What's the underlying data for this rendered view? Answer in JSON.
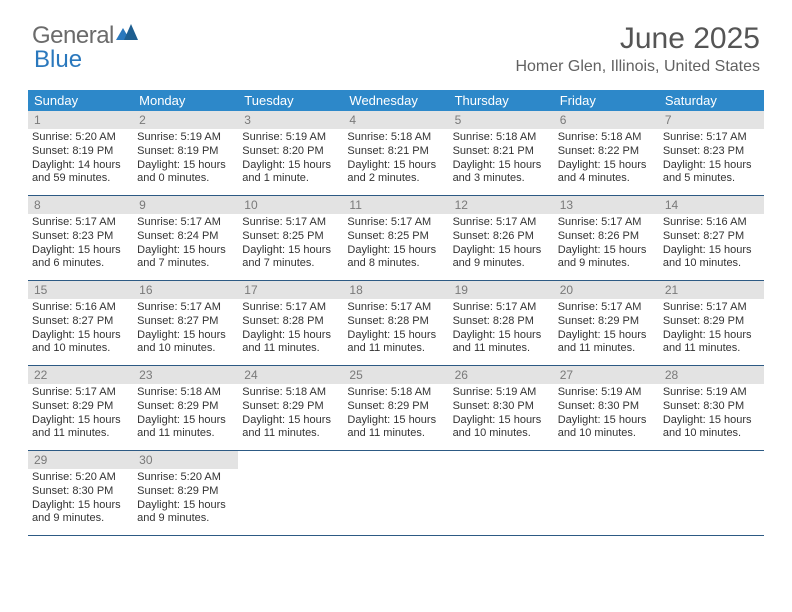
{
  "brand": {
    "part1": "General",
    "part2": "Blue"
  },
  "title": "June 2025",
  "location": "Homer Glen, Illinois, United States",
  "colors": {
    "header_bg": "#2d88c9",
    "header_text": "#ffffff",
    "daynum_bg": "#e3e3e3",
    "daynum_text": "#7a7a7a",
    "body_text": "#333333",
    "rule": "#2d5a84",
    "brand_gray": "#6b6b6b",
    "brand_blue": "#2a78bd"
  },
  "dow": [
    "Sunday",
    "Monday",
    "Tuesday",
    "Wednesday",
    "Thursday",
    "Friday",
    "Saturday"
  ],
  "days": [
    {
      "n": "1",
      "sr": "5:20 AM",
      "ss": "8:19 PM",
      "dl": "14 hours and 59 minutes."
    },
    {
      "n": "2",
      "sr": "5:19 AM",
      "ss": "8:19 PM",
      "dl": "15 hours and 0 minutes."
    },
    {
      "n": "3",
      "sr": "5:19 AM",
      "ss": "8:20 PM",
      "dl": "15 hours and 1 minute."
    },
    {
      "n": "4",
      "sr": "5:18 AM",
      "ss": "8:21 PM",
      "dl": "15 hours and 2 minutes."
    },
    {
      "n": "5",
      "sr": "5:18 AM",
      "ss": "8:21 PM",
      "dl": "15 hours and 3 minutes."
    },
    {
      "n": "6",
      "sr": "5:18 AM",
      "ss": "8:22 PM",
      "dl": "15 hours and 4 minutes."
    },
    {
      "n": "7",
      "sr": "5:17 AM",
      "ss": "8:23 PM",
      "dl": "15 hours and 5 minutes."
    },
    {
      "n": "8",
      "sr": "5:17 AM",
      "ss": "8:23 PM",
      "dl": "15 hours and 6 minutes."
    },
    {
      "n": "9",
      "sr": "5:17 AM",
      "ss": "8:24 PM",
      "dl": "15 hours and 7 minutes."
    },
    {
      "n": "10",
      "sr": "5:17 AM",
      "ss": "8:25 PM",
      "dl": "15 hours and 7 minutes."
    },
    {
      "n": "11",
      "sr": "5:17 AM",
      "ss": "8:25 PM",
      "dl": "15 hours and 8 minutes."
    },
    {
      "n": "12",
      "sr": "5:17 AM",
      "ss": "8:26 PM",
      "dl": "15 hours and 9 minutes."
    },
    {
      "n": "13",
      "sr": "5:17 AM",
      "ss": "8:26 PM",
      "dl": "15 hours and 9 minutes."
    },
    {
      "n": "14",
      "sr": "5:16 AM",
      "ss": "8:27 PM",
      "dl": "15 hours and 10 minutes."
    },
    {
      "n": "15",
      "sr": "5:16 AM",
      "ss": "8:27 PM",
      "dl": "15 hours and 10 minutes."
    },
    {
      "n": "16",
      "sr": "5:17 AM",
      "ss": "8:27 PM",
      "dl": "15 hours and 10 minutes."
    },
    {
      "n": "17",
      "sr": "5:17 AM",
      "ss": "8:28 PM",
      "dl": "15 hours and 11 minutes."
    },
    {
      "n": "18",
      "sr": "5:17 AM",
      "ss": "8:28 PM",
      "dl": "15 hours and 11 minutes."
    },
    {
      "n": "19",
      "sr": "5:17 AM",
      "ss": "8:28 PM",
      "dl": "15 hours and 11 minutes."
    },
    {
      "n": "20",
      "sr": "5:17 AM",
      "ss": "8:29 PM",
      "dl": "15 hours and 11 minutes."
    },
    {
      "n": "21",
      "sr": "5:17 AM",
      "ss": "8:29 PM",
      "dl": "15 hours and 11 minutes."
    },
    {
      "n": "22",
      "sr": "5:17 AM",
      "ss": "8:29 PM",
      "dl": "15 hours and 11 minutes."
    },
    {
      "n": "23",
      "sr": "5:18 AM",
      "ss": "8:29 PM",
      "dl": "15 hours and 11 minutes."
    },
    {
      "n": "24",
      "sr": "5:18 AM",
      "ss": "8:29 PM",
      "dl": "15 hours and 11 minutes."
    },
    {
      "n": "25",
      "sr": "5:18 AM",
      "ss": "8:29 PM",
      "dl": "15 hours and 11 minutes."
    },
    {
      "n": "26",
      "sr": "5:19 AM",
      "ss": "8:30 PM",
      "dl": "15 hours and 10 minutes."
    },
    {
      "n": "27",
      "sr": "5:19 AM",
      "ss": "8:30 PM",
      "dl": "15 hours and 10 minutes."
    },
    {
      "n": "28",
      "sr": "5:19 AM",
      "ss": "8:30 PM",
      "dl": "15 hours and 10 minutes."
    },
    {
      "n": "29",
      "sr": "5:20 AM",
      "ss": "8:30 PM",
      "dl": "15 hours and 9 minutes."
    },
    {
      "n": "30",
      "sr": "5:20 AM",
      "ss": "8:29 PM",
      "dl": "15 hours and 9 minutes."
    }
  ],
  "labels": {
    "sunrise": "Sunrise: ",
    "sunset": "Sunset: ",
    "daylight": "Daylight: "
  },
  "layout": {
    "start_dow": 0,
    "total_cells": 35
  }
}
